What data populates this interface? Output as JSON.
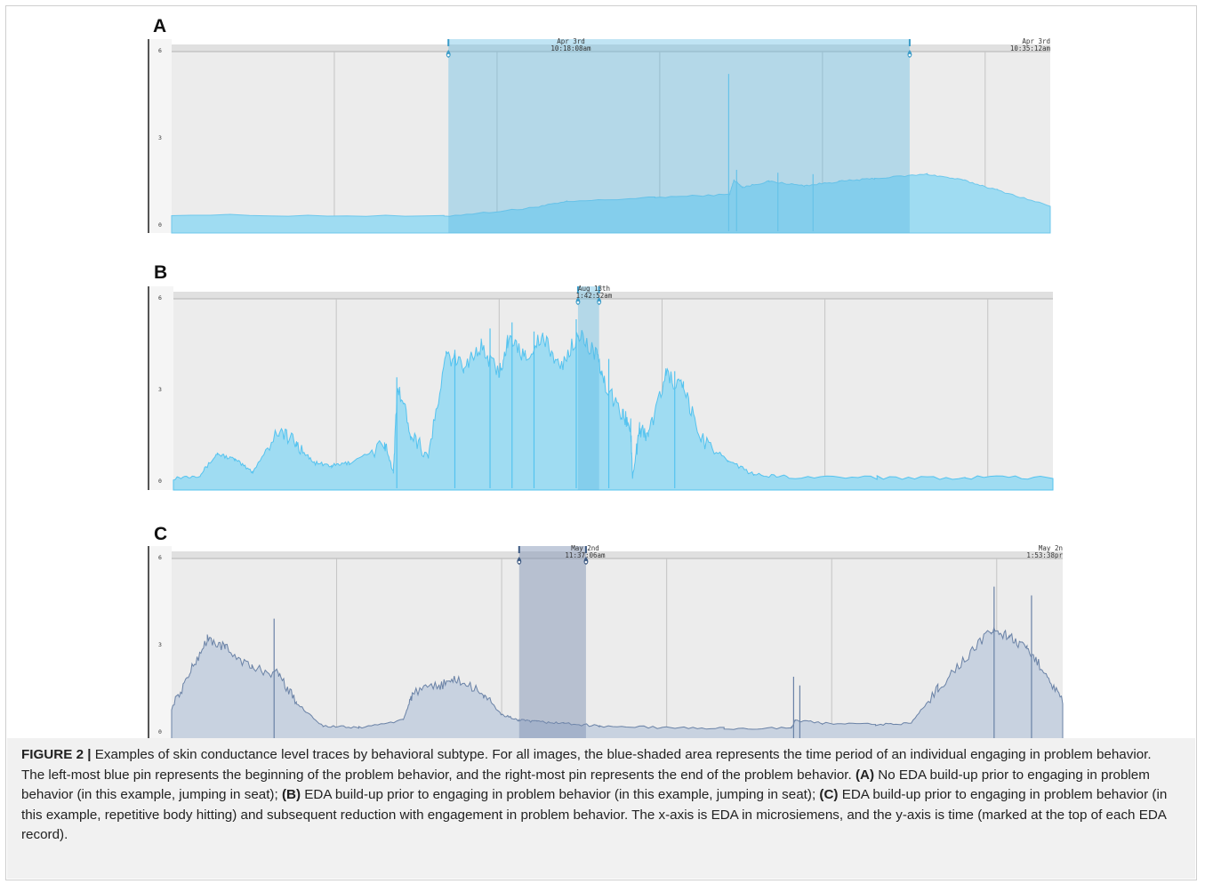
{
  "figure": {
    "caption": {
      "label": "FIGURE 2 |",
      "intro": " Examples of skin conductance level traces by behavioral subtype. For all images, the blue-shaded area represents the time period of an individual engaging in problem behavior. The left-most blue pin represents the beginning of the problem behavior, and the right-most pin represents the end of the problem behavior. ",
      "a_tag": "(A)",
      "a_text": " No EDA build-up prior to engaging in problem behavior (in this example, jumping in seat); ",
      "b_tag": "(B)",
      "b_text": " EDA build-up prior to engaging in problem behavior (in this example, jumping in seat); ",
      "c_tag": "(C)",
      "c_text": " EDA build-up prior to engaging in problem behavior (in this example, repetitive body hitting) and subsequent reduction with engagement in problem behavior. The x-axis is EDA in microsiemens, and the y-axis is time (marked at the top of each EDA record)."
    }
  },
  "chart_data": [
    {
      "type": "area",
      "panel": "A",
      "color": "#9fdcf2",
      "line_color": "#6fc8ec",
      "yticks": [
        "6",
        "3",
        "0"
      ],
      "ylim": [
        0,
        6
      ],
      "xlim": [
        0,
        100
      ],
      "timestamps": [
        {
          "date": "Apr 3rd",
          "time": "10:18:08am"
        },
        {
          "date": "Apr 3rd",
          "time": "10:35:12am"
        }
      ],
      "shade": [
        31.5,
        84
      ],
      "points": [
        [
          0,
          0.35
        ],
        [
          31,
          0.3
        ],
        [
          40,
          0.55
        ],
        [
          45,
          0.8
        ],
        [
          55,
          0.95
        ],
        [
          63.5,
          1.05
        ],
        [
          64,
          1.55
        ],
        [
          65,
          1.3
        ],
        [
          68,
          1.5
        ],
        [
          72,
          1.35
        ],
        [
          76,
          1.5
        ],
        [
          80,
          1.6
        ],
        [
          86,
          1.75
        ],
        [
          90,
          1.55
        ],
        [
          94,
          1.2
        ],
        [
          100,
          0.65
        ]
      ],
      "spikes": [
        [
          63.4,
          5.2
        ],
        [
          64.3,
          1.9
        ],
        [
          69,
          1.8
        ],
        [
          73,
          1.75
        ]
      ]
    },
    {
      "type": "area",
      "panel": "B",
      "color": "#9fdcf2",
      "line_color": "#55c3ef",
      "yticks": [
        "6",
        "3",
        "0"
      ],
      "ylim": [
        0,
        6
      ],
      "xlim": [
        0,
        100
      ],
      "timestamps": [
        {
          "date": "Aug 13th",
          "time": "1:42:52am"
        }
      ],
      "shade": [
        46,
        48.4
      ],
      "points": [
        [
          0,
          0.1
        ],
        [
          3,
          0.2
        ],
        [
          5,
          0.9
        ],
        [
          7,
          0.7
        ],
        [
          9,
          0.3
        ],
        [
          12,
          1.7
        ],
        [
          14,
          1.2
        ],
        [
          16,
          0.6
        ],
        [
          18,
          0.5
        ],
        [
          20,
          0.6
        ],
        [
          24,
          1.2
        ],
        [
          25,
          0.3
        ],
        [
          25.5,
          3.2
        ],
        [
          27,
          1.6
        ],
        [
          29,
          0.8
        ],
        [
          31,
          4.1
        ],
        [
          33,
          3.8
        ],
        [
          35,
          4.4
        ],
        [
          37,
          3.5
        ],
        [
          38,
          4.6
        ],
        [
          40,
          4.1
        ],
        [
          42,
          4.7
        ],
        [
          44,
          3.7
        ],
        [
          46,
          4.8
        ],
        [
          48,
          4.2
        ],
        [
          49,
          3.2
        ],
        [
          51,
          2.2
        ],
        [
          52,
          1.8
        ],
        [
          52.2,
          0.1
        ],
        [
          53,
          1.7
        ],
        [
          54,
          1.5
        ],
        [
          56,
          3.5
        ],
        [
          58,
          3.0
        ],
        [
          60,
          1.4
        ],
        [
          63,
          0.7
        ],
        [
          66,
          0.2
        ],
        [
          70,
          0.15
        ],
        [
          80,
          0.12
        ],
        [
          90,
          0.12
        ],
        [
          100,
          0.1
        ]
      ],
      "spikes": [
        [
          25.4,
          3.4
        ],
        [
          32,
          4.3
        ],
        [
          36,
          5.0
        ],
        [
          38.5,
          5.2
        ],
        [
          41,
          4.9
        ],
        [
          45.8,
          5.3
        ],
        [
          49.5,
          4.0
        ],
        [
          57,
          3.6
        ]
      ]
    },
    {
      "type": "area",
      "panel": "C",
      "color": "#c8d2e0",
      "line_color": "#6a82a6",
      "yticks": [
        "6",
        "3",
        "0"
      ],
      "ylim": [
        0,
        6
      ],
      "xlim": [
        0,
        100
      ],
      "timestamps": [
        {
          "date": "May 2nd",
          "time": "11:37:06am"
        },
        {
          "date": "May 2n",
          "time": "1:53:38pr"
        }
      ],
      "shade": [
        39,
        46.5
      ],
      "points": [
        [
          0,
          0.8
        ],
        [
          2,
          2.0
        ],
        [
          4,
          3.2
        ],
        [
          6,
          2.9
        ],
        [
          9,
          2.2
        ],
        [
          12,
          2.0
        ],
        [
          14,
          1.0
        ],
        [
          17,
          0.2
        ],
        [
          21,
          0.15
        ],
        [
          26,
          0.4
        ],
        [
          27,
          1.3
        ],
        [
          30,
          1.6
        ],
        [
          32,
          1.8
        ],
        [
          35,
          1.3
        ],
        [
          37,
          0.6
        ],
        [
          39,
          0.4
        ],
        [
          41,
          0.35
        ],
        [
          44,
          0.3
        ],
        [
          48,
          0.2
        ],
        [
          55,
          0.15
        ],
        [
          62,
          0.12
        ],
        [
          69.5,
          0.12
        ],
        [
          70,
          0.4
        ],
        [
          73,
          0.3
        ],
        [
          79,
          0.25
        ],
        [
          83,
          0.3
        ],
        [
          86,
          1.5
        ],
        [
          89,
          2.5
        ],
        [
          92,
          3.5
        ],
        [
          94,
          3.3
        ],
        [
          96,
          2.8
        ],
        [
          98,
          2.1
        ],
        [
          100,
          1.0
        ]
      ],
      "spikes": [
        [
          11.5,
          3.9
        ],
        [
          69.8,
          1.9
        ],
        [
          70.5,
          1.6
        ],
        [
          92.3,
          5.0
        ],
        [
          96.5,
          4.7
        ]
      ]
    }
  ]
}
